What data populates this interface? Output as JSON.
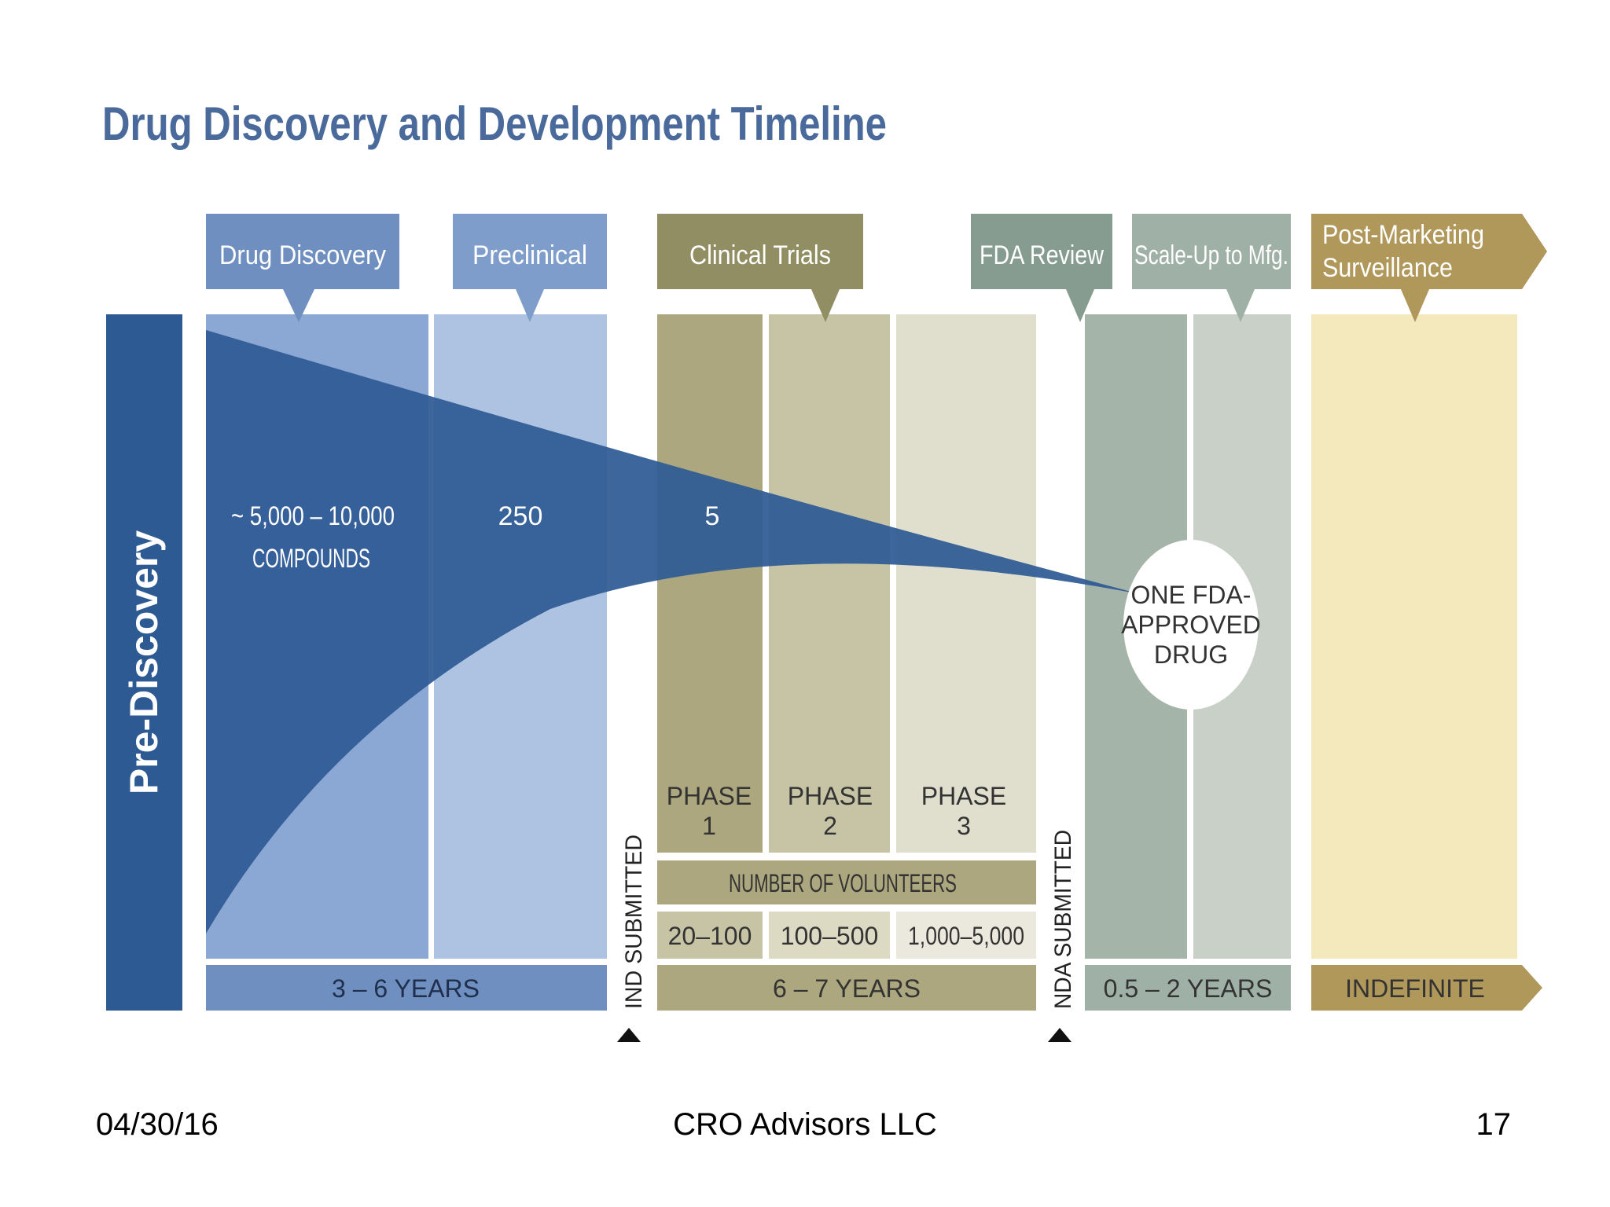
{
  "title": "Drug Discovery and Development Timeline",
  "pre_discovery_label": "Pre-Discovery",
  "stages": {
    "drug_discovery": "Drug Discovery",
    "preclinical": "Preclinical",
    "clinical_trials": "Clinical Trials",
    "fda_review": "FDA Review",
    "scale_up": "Scale-Up to Mfg.",
    "post_marketing_line1": "Post-Marketing",
    "post_marketing_line2": "Surveillance"
  },
  "compounds": {
    "discovery_line1": "~ 5,000 – 10,000",
    "discovery_line2": "COMPOUNDS",
    "preclinical": "250",
    "clinical": "5",
    "approved_line1": "ONE FDA-",
    "approved_line2": "APPROVED",
    "approved_line3": "DRUG"
  },
  "phases": [
    {
      "label": "PHASE",
      "number": "1",
      "volunteers": "20–100"
    },
    {
      "label": "PHASE",
      "number": "2",
      "volunteers": "100–500"
    },
    {
      "label": "PHASE",
      "number": "3",
      "volunteers": "1,000–5,000"
    }
  ],
  "volunteers_header": "NUMBER OF VOLUNTEERS",
  "milestones": {
    "ind": "IND SUBMITTED",
    "nda": "NDA SUBMITTED"
  },
  "durations": {
    "discovery_preclinical": "3 – 6 YEARS",
    "clinical": "6 – 7 YEARS",
    "review_scaleup": "0.5 – 2 YEARS",
    "post_marketing": "INDEFINITE"
  },
  "footer": {
    "date": "04/30/16",
    "company": "CRO Advisors LLC",
    "page": "17"
  },
  "colors": {
    "title": "#4a6a9c",
    "funnel": "#2e5a94",
    "discovery_header": "#6f8fc0",
    "preclinical_header": "#7e9dca",
    "clinical_header": "#918e63",
    "fda_header": "#869c90",
    "scaleup_header": "#9fb0a6",
    "post_header": "#b0975a"
  }
}
